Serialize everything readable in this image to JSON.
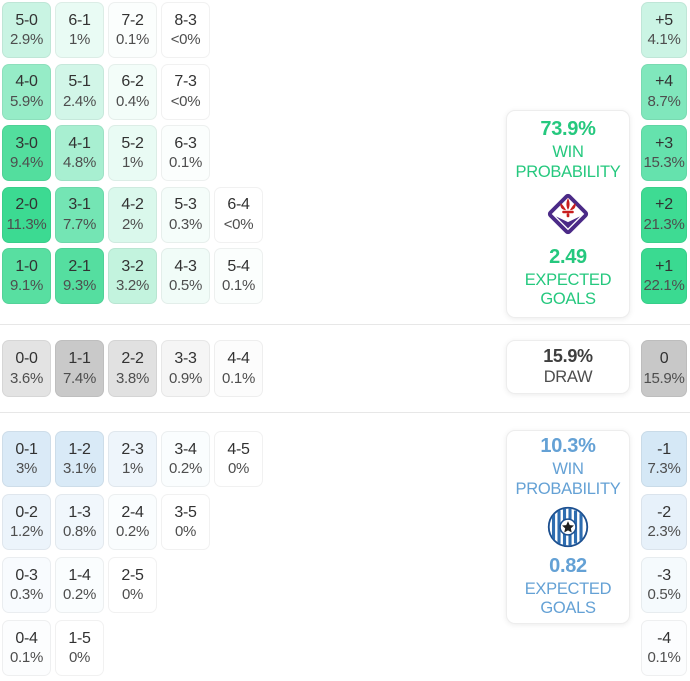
{
  "accents": {
    "home_green": "#25c87e",
    "away_blue": "#64a1d5",
    "max_green_cell": "#3cda92",
    "max_gray_cell": "#c8c8c8",
    "max_blue_cell": "#d5e8f6"
  },
  "panels": {
    "home": {
      "win_probability": "73.9%",
      "win_label": "WIN",
      "probability_label": "PROBABILITY",
      "expected_goals": "2.49",
      "expected_label": "EXPECTED",
      "goals_label": "GOALS",
      "crest_icon": "fiorentina-crest"
    },
    "draw": {
      "probability": "15.9%",
      "label": "DRAW"
    },
    "away": {
      "win_probability": "10.3%",
      "win_label": "WIN",
      "probability_label": "PROBABILITY",
      "expected_goals": "0.82",
      "expected_label": "EXPECTED",
      "goals_label": "GOALS",
      "crest_icon": "sigma-olomouc-crest"
    }
  },
  "chart_data": {
    "type": "heatmap",
    "title": "Correct score probability matrix with win/draw/loss probabilities and goal-difference distribution",
    "home_win_scores": [
      [
        {
          "score": "5-0",
          "pct": "2.9%",
          "bg": "#c9f4e3"
        },
        {
          "score": "6-1",
          "pct": "1%",
          "bg": "#e9fbf4"
        },
        {
          "score": "7-2",
          "pct": "0.1%",
          "bg": "#fbfefd"
        },
        {
          "score": "8-3",
          "pct": "<0%",
          "bg": "#ffffff"
        }
      ],
      [
        {
          "score": "4-0",
          "pct": "5.9%",
          "bg": "#96ecc7"
        },
        {
          "score": "5-1",
          "pct": "2.4%",
          "bg": "#d2f6e8"
        },
        {
          "score": "6-2",
          "pct": "0.4%",
          "bg": "#f3fdf9"
        },
        {
          "score": "7-3",
          "pct": "<0%",
          "bg": "#ffffff"
        }
      ],
      [
        {
          "score": "3-0",
          "pct": "9.4%",
          "bg": "#53de9e"
        },
        {
          "score": "4-1",
          "pct": "4.8%",
          "bg": "#a8efd1"
        },
        {
          "score": "5-2",
          "pct": "1%",
          "bg": "#e9fbf4"
        },
        {
          "score": "6-3",
          "pct": "0.1%",
          "bg": "#fbfefd"
        }
      ],
      [
        {
          "score": "2-0",
          "pct": "11.3%",
          "bg": "#3cda92"
        },
        {
          "score": "3-1",
          "pct": "7.7%",
          "bg": "#74e5b4"
        },
        {
          "score": "4-2",
          "pct": "2%",
          "bg": "#daf8ec"
        },
        {
          "score": "5-3",
          "pct": "0.3%",
          "bg": "#f5fdfa"
        },
        {
          "score": "6-4",
          "pct": "<0%",
          "bg": "#ffffff"
        }
      ],
      [
        {
          "score": "1-0",
          "pct": "9.1%",
          "bg": "#58dfa1"
        },
        {
          "score": "2-1",
          "pct": "9.3%",
          "bg": "#55dea0"
        },
        {
          "score": "3-2",
          "pct": "3.2%",
          "bg": "#c3f3de"
        },
        {
          "score": "4-3",
          "pct": "0.5%",
          "bg": "#f1fcf8"
        },
        {
          "score": "5-4",
          "pct": "0.1%",
          "bg": "#fbfefd"
        }
      ]
    ],
    "draw_scores": [
      {
        "score": "0-0",
        "pct": "3.6%",
        "bg": "#e3e3e3"
      },
      {
        "score": "1-1",
        "pct": "7.4%",
        "bg": "#c9c9c9"
      },
      {
        "score": "2-2",
        "pct": "3.8%",
        "bg": "#e1e1e1"
      },
      {
        "score": "3-3",
        "pct": "0.9%",
        "bg": "#f5f5f5"
      },
      {
        "score": "4-4",
        "pct": "0.1%",
        "bg": "#fcfcfc"
      }
    ],
    "away_win_scores": [
      [
        {
          "score": "0-1",
          "pct": "3%",
          "bg": "#daeaf7"
        },
        {
          "score": "1-2",
          "pct": "3.1%",
          "bg": "#d9eaf7"
        },
        {
          "score": "2-3",
          "pct": "1%",
          "bg": "#eef5fb"
        },
        {
          "score": "3-4",
          "pct": "0.2%",
          "bg": "#fafdfe"
        },
        {
          "score": "4-5",
          "pct": "0%",
          "bg": "#ffffff"
        }
      ],
      [
        {
          "score": "0-2",
          "pct": "1.2%",
          "bg": "#ecf4fb"
        },
        {
          "score": "1-3",
          "pct": "0.8%",
          "bg": "#f1f7fc"
        },
        {
          "score": "2-4",
          "pct": "0.2%",
          "bg": "#fafdfe"
        },
        {
          "score": "3-5",
          "pct": "0%",
          "bg": "#ffffff"
        }
      ],
      [
        {
          "score": "0-3",
          "pct": "0.3%",
          "bg": "#f8fbfe"
        },
        {
          "score": "1-4",
          "pct": "0.2%",
          "bg": "#fafdfe"
        },
        {
          "score": "2-5",
          "pct": "0%",
          "bg": "#ffffff"
        }
      ],
      [
        {
          "score": "0-4",
          "pct": "0.1%",
          "bg": "#fcfdfe"
        },
        {
          "score": "1-5",
          "pct": "0%",
          "bg": "#ffffff"
        }
      ]
    ],
    "goal_difference": {
      "home": [
        {
          "diff": "+5",
          "pct": "4.1%",
          "bg": "#cbf4e4"
        },
        {
          "diff": "+4",
          "pct": "8.7%",
          "bg": "#80e7bc"
        },
        {
          "diff": "+3",
          "pct": "15.3%",
          "bg": "#65e2ad"
        },
        {
          "diff": "+2",
          "pct": "21.3%",
          "bg": "#3edb93"
        },
        {
          "diff": "+1",
          "pct": "22.1%",
          "bg": "#3ada91"
        }
      ],
      "draw": [
        {
          "diff": "0",
          "pct": "15.9%",
          "bg": "#c8c8c8"
        }
      ],
      "away": [
        {
          "diff": "-1",
          "pct": "7.3%",
          "bg": "#d5e8f6"
        },
        {
          "diff": "-2",
          "pct": "2.3%",
          "bg": "#e7f1fa"
        },
        {
          "diff": "-3",
          "pct": "0.5%",
          "bg": "#f5fafd"
        },
        {
          "diff": "-4",
          "pct": "0.1%",
          "bg": "#fcfdfe"
        }
      ]
    }
  }
}
